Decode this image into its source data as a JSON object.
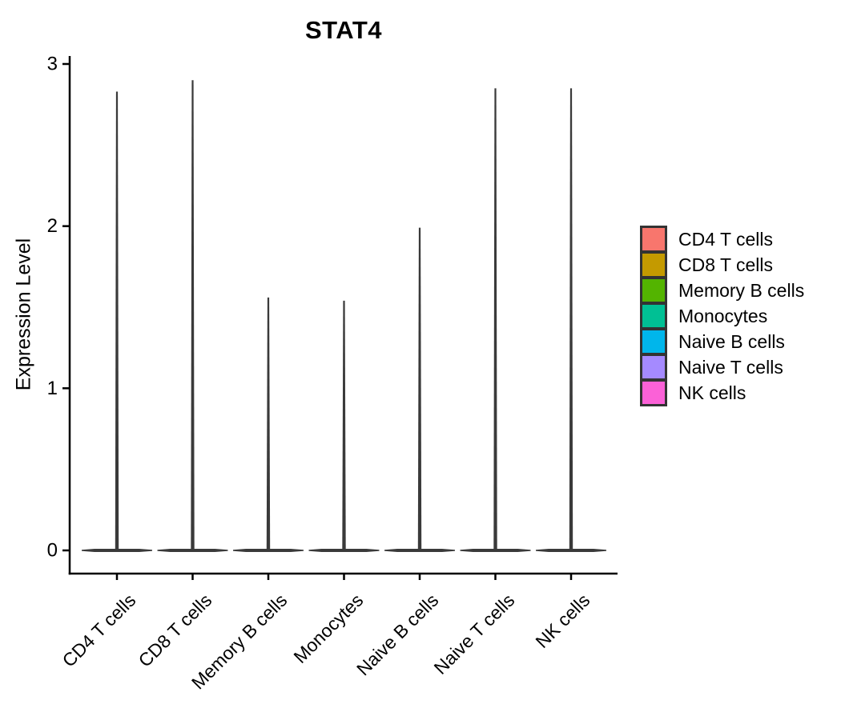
{
  "chart_data": {
    "type": "violin",
    "title": "STAT4",
    "xlabel": "",
    "ylabel": "Expression Level",
    "ylim": [
      0,
      3.05
    ],
    "yticks": [
      0,
      1,
      2,
      3
    ],
    "categories": [
      "CD4 T cells",
      "CD8 T cells",
      "Memory B cells",
      "Monocytes",
      "Naive B cells",
      "Naive T cells",
      "NK cells"
    ],
    "series": [
      {
        "name": "CD4 T cells",
        "color": "#F8766D",
        "max_expression": 2.83,
        "min_expression": 0
      },
      {
        "name": "CD8 T cells",
        "color": "#C49A00",
        "max_expression": 2.9,
        "min_expression": 0
      },
      {
        "name": "Memory B cells",
        "color": "#53B400",
        "max_expression": 1.56,
        "min_expression": 0
      },
      {
        "name": "Monocytes",
        "color": "#00C094",
        "max_expression": 1.54,
        "min_expression": 0
      },
      {
        "name": "Naive B cells",
        "color": "#00B6EB",
        "max_expression": 1.99,
        "min_expression": 0
      },
      {
        "name": "Naive T cells",
        "color": "#A58AFF",
        "max_expression": 2.85,
        "min_expression": 0
      },
      {
        "name": "NK cells",
        "color": "#FB61D7",
        "max_expression": 2.85,
        "min_expression": 0
      }
    ],
    "distribution_note": "mass concentrated at 0 (wide flat base) with very thin tail up to max",
    "legend_position": "right",
    "grid": false,
    "violin_outline_color": "#3A3A3A",
    "axis_color": "#000000",
    "text_color": "#000000",
    "background_color": "#FFFFFF"
  }
}
